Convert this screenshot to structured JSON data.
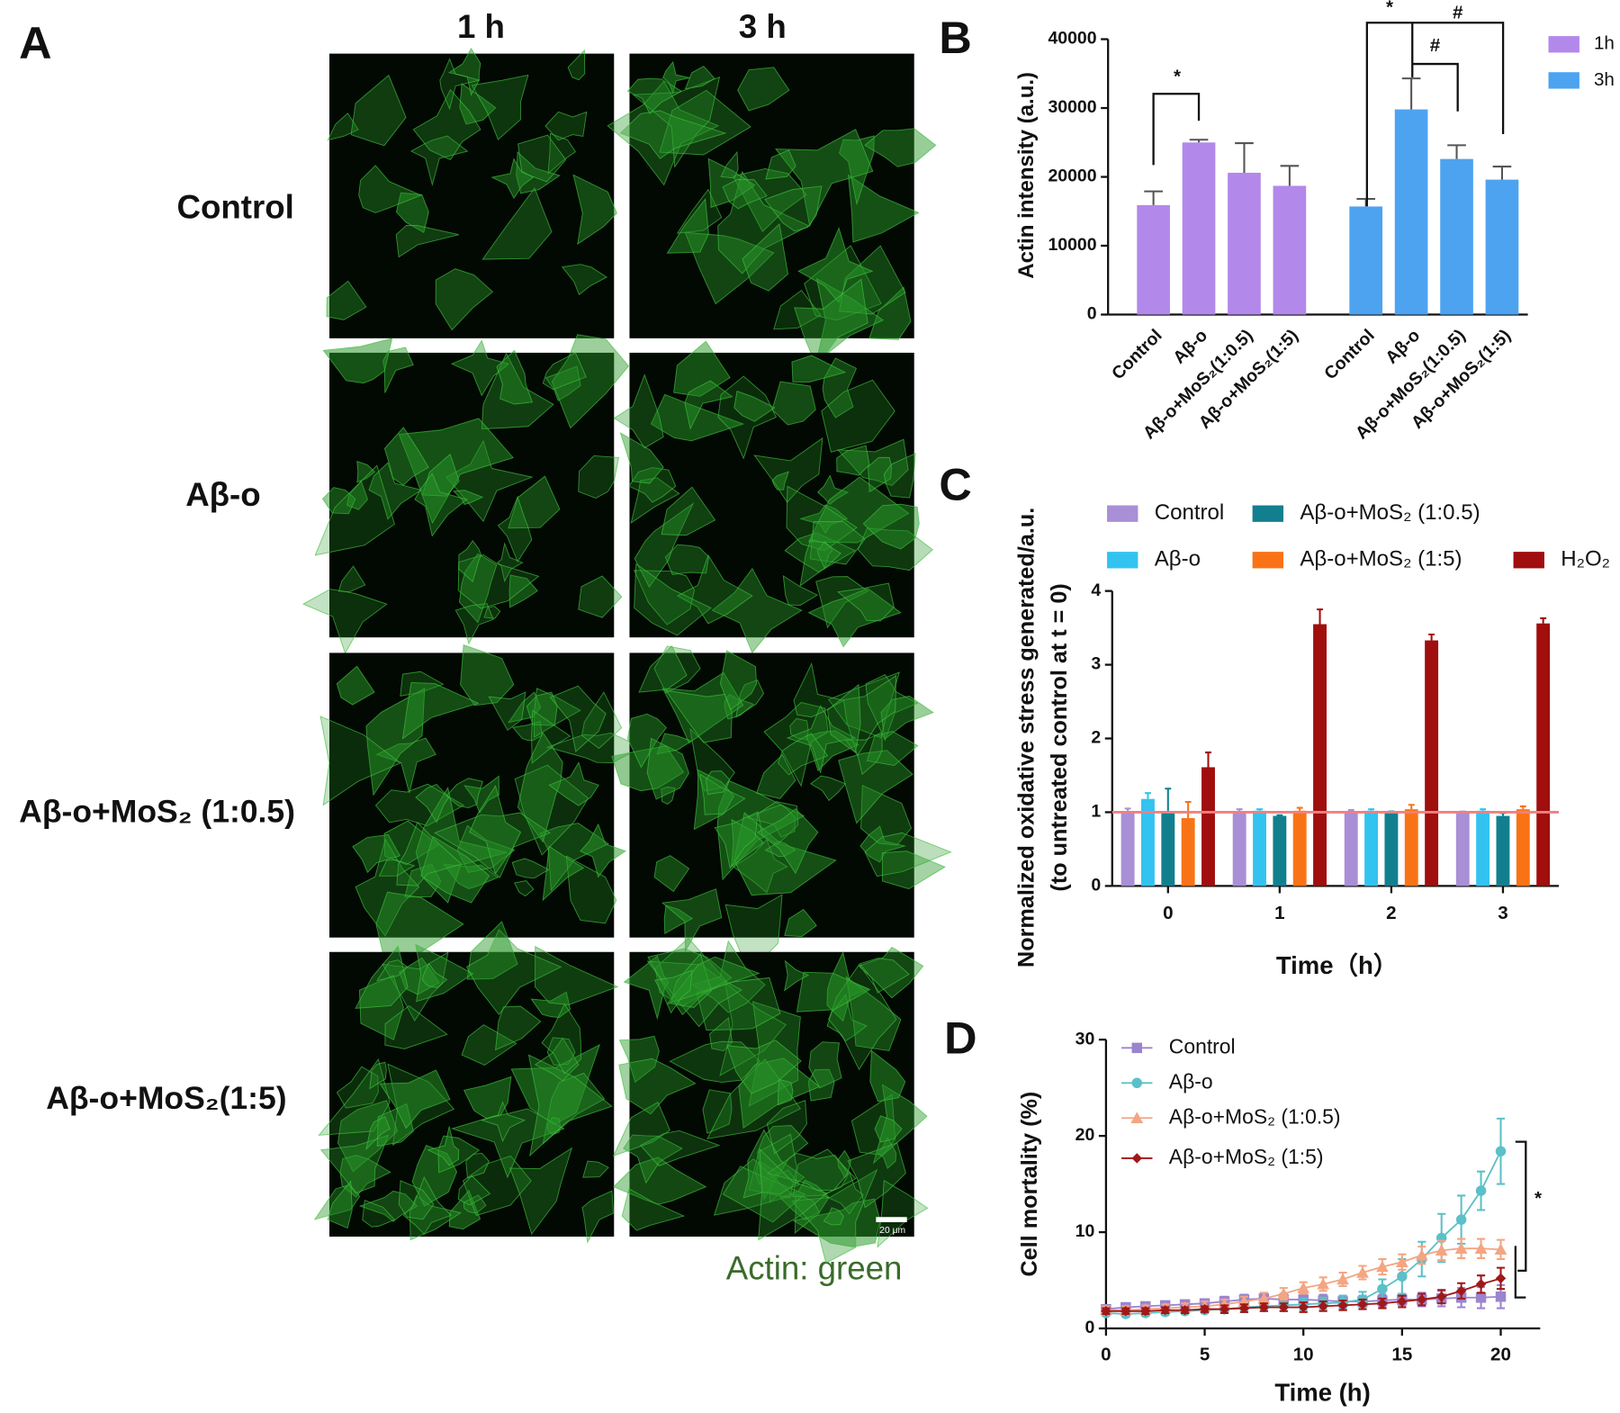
{
  "figure": {
    "panel_labels": [
      "A",
      "B",
      "C",
      "D"
    ],
    "column_headers": [
      "1 h",
      "3 h"
    ],
    "row_labels": [
      "Control",
      "Aβ-o",
      "Aβ-o+MoS₂ (1:0.5)",
      "Aβ-o+MoS₂(1:5)"
    ],
    "scale_bar": "20 μm",
    "caption": "Actin: green"
  },
  "chart_data": [
    {
      "type": "bar",
      "grouping": "sequential",
      "ylabel": "Actin intensity (a.u.)",
      "categories": [
        "Control",
        "Aβ-o",
        "Aβ-o+MoS₂(1:0.5)",
        "Aβ-o+MoS₂(1:5)"
      ],
      "series": [
        {
          "name": "1h",
          "color": "#b388eb",
          "values": [
            15900,
            25000,
            20600,
            18700
          ],
          "errors": [
            2000,
            400,
            4300,
            2900
          ]
        },
        {
          "name": "3h",
          "color": "#4da3f0",
          "values": [
            15700,
            29800,
            22600,
            19600
          ],
          "errors": [
            1100,
            4500,
            2000,
            1900
          ]
        }
      ],
      "ylim": [
        0,
        40000
      ],
      "yticks": [
        0,
        10000,
        20000,
        30000,
        40000
      ],
      "annotations": [
        "*",
        "*",
        "#",
        "#"
      ],
      "legend": "upper right"
    },
    {
      "type": "bar",
      "grouping": "clustered",
      "ylabel": [
        "Normalized oxidative stress generated/a.u.",
        "(to untreated control at t = 0)"
      ],
      "xlabel": "Time（h）",
      "categories": [
        "0",
        "1",
        "2",
        "3"
      ],
      "series": [
        {
          "name": "Control",
          "color": "#a98fd6",
          "values": [
            1.0,
            1.0,
            1.0,
            1.0
          ],
          "errors": [
            0.05,
            0.04,
            0.03,
            0.01
          ]
        },
        {
          "name": "Aβ-o",
          "color": "#33c3f0",
          "values": [
            1.18,
            1.02,
            1.02,
            1.02
          ],
          "errors": [
            0.08,
            0.02,
            0.02,
            0.02
          ]
        },
        {
          "name": "Aβ-o+MoS₂ (1:0.5)",
          "color": "#127f8f",
          "values": [
            1.0,
            0.95,
            0.99,
            0.95
          ],
          "errors": [
            0.32,
            0.01,
            0.02,
            0.04
          ]
        },
        {
          "name": "Aβ-o+MoS₂ (1:5)",
          "color": "#f97316",
          "values": [
            0.92,
            1.02,
            1.04,
            1.04
          ],
          "errors": [
            0.22,
            0.04,
            0.06,
            0.04
          ]
        },
        {
          "name": "H₂O₂",
          "color": "#a00e0e",
          "values": [
            1.61,
            3.55,
            3.33,
            3.56
          ],
          "errors": [
            0.2,
            0.2,
            0.08,
            0.07
          ]
        }
      ],
      "ylim": [
        0,
        4
      ],
      "yticks": [
        0,
        1,
        2,
        3,
        4
      ],
      "reference_line": 1,
      "reference_color": "#f08080",
      "legend": "top"
    },
    {
      "type": "line",
      "ylabel": "Cell mortality  (%)",
      "xlabel": "Time (h)",
      "x": [
        0,
        1,
        2,
        3,
        4,
        5,
        6,
        7,
        8,
        9,
        10,
        11,
        12,
        13,
        14,
        15,
        16,
        17,
        18,
        19,
        20
      ],
      "series": [
        {
          "name": "Control",
          "color": "#9b84cf",
          "marker": "square",
          "values": [
            2.0,
            2.2,
            2.3,
            2.4,
            2.5,
            2.6,
            2.8,
            3.0,
            3.1,
            3.0,
            3.0,
            2.9,
            2.8,
            2.8,
            2.9,
            3.0,
            3.0,
            3.1,
            3.2,
            3.2,
            3.3
          ],
          "errors": [
            0.4,
            0.4,
            0.4,
            0.4,
            0.4,
            0.4,
            0.5,
            0.5,
            0.5,
            0.6,
            0.6,
            0.6,
            0.6,
            0.6,
            0.6,
            0.6,
            0.7,
            0.8,
            1.0,
            1.1,
            1.2
          ]
        },
        {
          "name": "Aβ-o",
          "color": "#5bc0c8",
          "marker": "circle",
          "values": [
            1.6,
            1.5,
            1.6,
            1.7,
            1.8,
            1.9,
            2.0,
            2.2,
            2.3,
            2.4,
            2.5,
            2.6,
            2.7,
            3.0,
            4.1,
            5.4,
            7.2,
            9.4,
            11.3,
            14.3,
            18.4
          ],
          "errors": [
            0.3,
            0.3,
            0.3,
            0.3,
            0.3,
            0.3,
            0.4,
            0.5,
            0.5,
            0.6,
            0.6,
            0.6,
            0.7,
            0.8,
            1.0,
            1.8,
            1.8,
            2.5,
            2.5,
            2.0,
            3.4
          ]
        },
        {
          "name": "Aβ-o+MoS₂ (1:0.5)",
          "color": "#f4a582",
          "marker": "triangle",
          "values": [
            1.9,
            1.9,
            2.0,
            2.1,
            2.2,
            2.3,
            2.5,
            2.8,
            3.1,
            3.6,
            4.2,
            4.6,
            5.1,
            5.8,
            6.4,
            6.9,
            7.6,
            8.1,
            8.3,
            8.3,
            8.2
          ],
          "errors": [
            0.4,
            0.4,
            0.4,
            0.4,
            0.4,
            0.5,
            0.5,
            0.5,
            0.6,
            0.6,
            0.6,
            0.7,
            0.7,
            0.7,
            0.8,
            0.8,
            0.9,
            1.0,
            1.0,
            1.0,
            1.0
          ]
        },
        {
          "name": "Aβ-o+MoS₂ (1:5)",
          "color": "#a01818",
          "marker": "diamond",
          "values": [
            1.8,
            1.8,
            1.8,
            1.9,
            1.9,
            2.0,
            2.0,
            2.1,
            2.2,
            2.2,
            2.2,
            2.3,
            2.4,
            2.5,
            2.6,
            2.8,
            3.0,
            3.3,
            3.9,
            4.6,
            5.2
          ],
          "errors": [
            0.3,
            0.3,
            0.3,
            0.3,
            0.3,
            0.3,
            0.4,
            0.4,
            0.4,
            0.4,
            0.5,
            0.5,
            0.5,
            0.5,
            0.5,
            0.6,
            0.6,
            0.7,
            0.8,
            0.9,
            1.1
          ]
        }
      ],
      "xlim": [
        0,
        22
      ],
      "xticks": [
        0,
        5,
        10,
        15,
        20
      ],
      "ylim": [
        0,
        30
      ],
      "yticks": [
        0,
        10,
        20,
        30
      ],
      "annotations": [
        "*"
      ],
      "legend": "upper left"
    }
  ]
}
